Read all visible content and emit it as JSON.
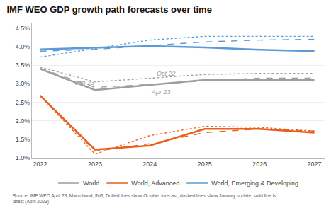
{
  "chart_data": {
    "type": "line",
    "title": "IMF WEO GDP growth path forecasts over time",
    "source": "Source: IMF WEO April 23, Macrobond, ING; Dotted lines show October forecast, dashed lines show January update, solid line is\nlatest (April 2023)",
    "x": [
      2022,
      2023,
      2024,
      2025,
      2026,
      2027
    ],
    "xlim": [
      2021.85,
      2027.2
    ],
    "xticks": [
      2022,
      2023,
      2024,
      2025,
      2026,
      2027
    ],
    "ylim": [
      1.0,
      4.65
    ],
    "yticks": [
      {
        "value": 1.0,
        "label": "1.0%"
      },
      {
        "value": 1.5,
        "label": "1.5%"
      },
      {
        "value": 2.0,
        "label": "2.0%"
      },
      {
        "value": 2.5,
        "label": "2.5%"
      },
      {
        "value": 3.0,
        "label": "3.0%"
      },
      {
        "value": 3.5,
        "label": "3.5%"
      },
      {
        "value": 4.0,
        "label": "4.0%"
      },
      {
        "value": 4.5,
        "label": "4.5%"
      }
    ],
    "grid": true,
    "legend": "bottom",
    "series": [
      {
        "color": "#9e9e9e",
        "line_style": "dotted",
        "values": [
          3.45,
          3.05,
          3.15,
          3.25,
          3.28,
          3.28
        ]
      },
      {
        "color": "#9e9e9e",
        "line_style": "dashed",
        "values": [
          3.42,
          2.9,
          2.98,
          3.08,
          3.15,
          3.15
        ]
      },
      {
        "name": "World",
        "color": "#9e9e9e",
        "line_style": "solid",
        "values": [
          3.4,
          2.83,
          2.97,
          3.1,
          3.1,
          3.1
        ]
      },
      {
        "color": "#E8601C",
        "line_style": "dotted",
        "values": [
          2.68,
          1.1,
          1.6,
          1.85,
          1.82,
          1.72
        ]
      },
      {
        "color": "#E8601C",
        "line_style": "dashed",
        "values": [
          2.68,
          1.18,
          1.38,
          1.68,
          1.78,
          1.72
        ]
      },
      {
        "name": "World, Advanced",
        "color": "#E8601C",
        "line_style": "solid",
        "values": [
          2.68,
          1.22,
          1.33,
          1.78,
          1.78,
          1.68
        ]
      },
      {
        "color": "#5b9bd5",
        "line_style": "dotted",
        "values": [
          3.72,
          3.95,
          4.18,
          4.28,
          4.28,
          4.28
        ]
      },
      {
        "color": "#5b9bd5",
        "line_style": "dashed",
        "values": [
          3.88,
          3.93,
          4.03,
          4.13,
          4.18,
          4.2
        ]
      },
      {
        "name": "World, Emerging & Developing",
        "color": "#5b9bd5",
        "line_style": "solid",
        "values": [
          3.93,
          3.98,
          4.02,
          3.98,
          3.92,
          3.88
        ]
      }
    ],
    "annotations": [
      {
        "text": "Oct 22",
        "x": 2024.1,
        "y": 3.27,
        "color": "#9e9e9e"
      },
      {
        "text": "Jan 23",
        "x": 2022.6,
        "y": 3.02,
        "color": "#9e9e9e"
      },
      {
        "text": "Apr 23",
        "x": 2024.0,
        "y": 2.78,
        "color": "#9e9e9e"
      }
    ]
  }
}
